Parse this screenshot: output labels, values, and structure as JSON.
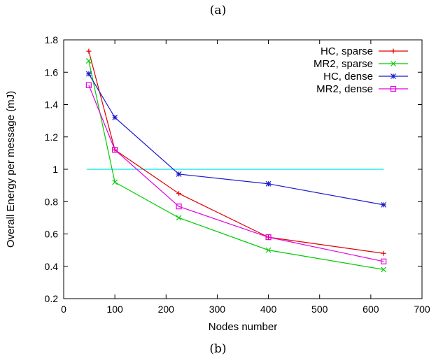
{
  "captions": {
    "top": "(a)",
    "bottom": "(b)"
  },
  "chart_data": {
    "type": "line",
    "title": "",
    "xlabel": "Nodes number",
    "ylabel": "Overall Energy per message (mJ)",
    "xlim": [
      0,
      700
    ],
    "ylim": [
      0.2,
      1.8
    ],
    "xticks": [
      0,
      100,
      200,
      300,
      400,
      500,
      600,
      700
    ],
    "yticks": [
      0.2,
      0.4,
      0.6,
      0.8,
      1,
      1.2,
      1.4,
      1.6,
      1.8
    ],
    "xtick_labels": [
      "0",
      "100",
      "200",
      "300",
      "400",
      "500",
      "600",
      "700"
    ],
    "ytick_labels": [
      "0.2",
      "0.4",
      "0.6",
      "0.8",
      "1",
      "1.2",
      "1.4",
      "1.6",
      "1.8"
    ],
    "grid": false,
    "legend_position": "top-right",
    "reference_line": {
      "y": 1,
      "x_range": [
        45,
        625
      ],
      "color": "#00e5e5"
    },
    "series": [
      {
        "name": "HC, sparse",
        "color": "#e00000",
        "marker": "plus",
        "x": [
          49,
          100,
          225,
          400,
          625
        ],
        "y": [
          1.73,
          1.12,
          0.85,
          0.58,
          0.48
        ]
      },
      {
        "name": "MR2, sparse",
        "color": "#00cc00",
        "marker": "x",
        "x": [
          49,
          100,
          225,
          400,
          625
        ],
        "y": [
          1.67,
          0.92,
          0.7,
          0.5,
          0.38
        ]
      },
      {
        "name": "HC, dense",
        "color": "#1a1acc",
        "marker": "star",
        "x": [
          49,
          100,
          225,
          400,
          625
        ],
        "y": [
          1.59,
          1.32,
          0.97,
          0.91,
          0.78
        ]
      },
      {
        "name": "MR2, dense",
        "color": "#e000e0",
        "marker": "square",
        "x": [
          49,
          100,
          225,
          400,
          625
        ],
        "y": [
          1.52,
          1.12,
          0.77,
          0.58,
          0.43
        ]
      }
    ]
  }
}
